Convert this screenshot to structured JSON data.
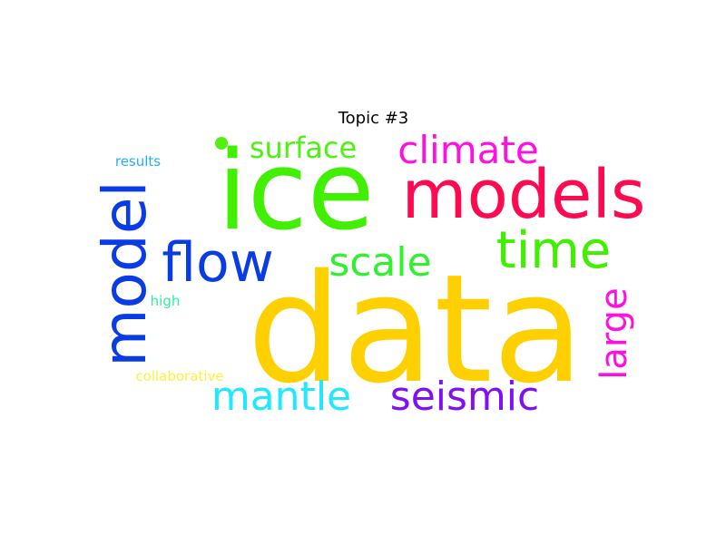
{
  "title": "Topic #3",
  "words": [
    {
      "text": "data",
      "color": "#FFD000"
    },
    {
      "text": "ice",
      "color": "#40F000"
    },
    {
      "text": "models",
      "color": "#FF0A50"
    },
    {
      "text": "model",
      "color": "#0A3CE6"
    },
    {
      "text": "flow",
      "color": "#0A3CE6"
    },
    {
      "text": "time",
      "color": "#40F000"
    },
    {
      "text": "climate",
      "color": "#FF10E0"
    },
    {
      "text": "surface",
      "color": "#50F010"
    },
    {
      "text": "scale",
      "color": "#30F030"
    },
    {
      "text": "mantle",
      "color": "#20E8FF"
    },
    {
      "text": "seismic",
      "color": "#8010F0"
    },
    {
      "text": "large",
      "color": "#FF10E0"
    },
    {
      "text": "results",
      "color": "#20B0FF"
    },
    {
      "text": "high",
      "color": "#30F0A0"
    },
    {
      "text": "collaborative",
      "color": "#FFF040"
    }
  ],
  "dot_color": "#50F010"
}
